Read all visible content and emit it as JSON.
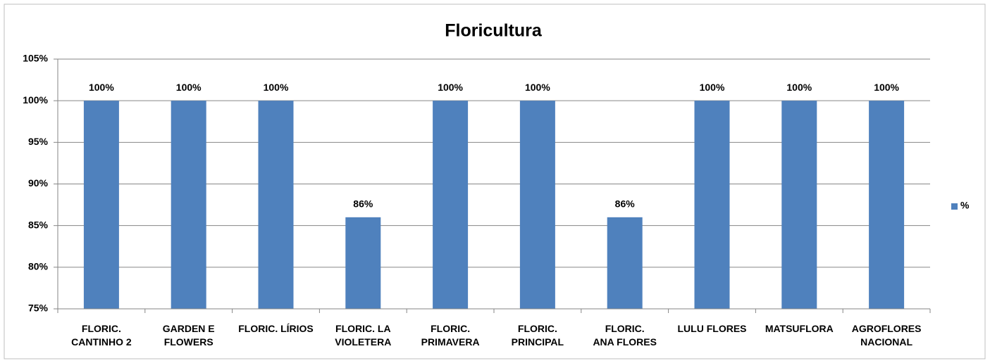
{
  "chart_data": {
    "type": "bar",
    "title": "Floricultura",
    "categories": [
      "FLORIC.\nCANTINHO 2",
      "GARDEN E\nFLOWERS",
      "FLORIC. LÍRIOS",
      "FLORIC. LA\nVIOLETERA",
      "FLORIC.\nPRIMAVERA",
      "FLORIC.\nPRINCIPAL",
      "FLORIC.\nANA FLORES",
      "LULU FLORES",
      "MATSUFLORA",
      "AGROFLORES\nNACIONAL"
    ],
    "series": [
      {
        "name": "%",
        "color": "#4f81bd",
        "values": [
          100,
          100,
          100,
          86,
          100,
          100,
          86,
          100,
          100,
          100
        ],
        "value_labels": [
          "100%",
          "100%",
          "100%",
          "86%",
          "100%",
          "100%",
          "86%",
          "100%",
          "100%",
          "100%"
        ]
      }
    ],
    "ylim": [
      75,
      105
    ],
    "yticks": [
      {
        "value": 75,
        "label": "75%"
      },
      {
        "value": 80,
        "label": "80%"
      },
      {
        "value": 85,
        "label": "85%"
      },
      {
        "value": 90,
        "label": "90%"
      },
      {
        "value": 95,
        "label": "95%"
      },
      {
        "value": 100,
        "label": "100%"
      },
      {
        "value": 105,
        "label": "105%"
      }
    ],
    "grid": true,
    "legend": "right"
  }
}
